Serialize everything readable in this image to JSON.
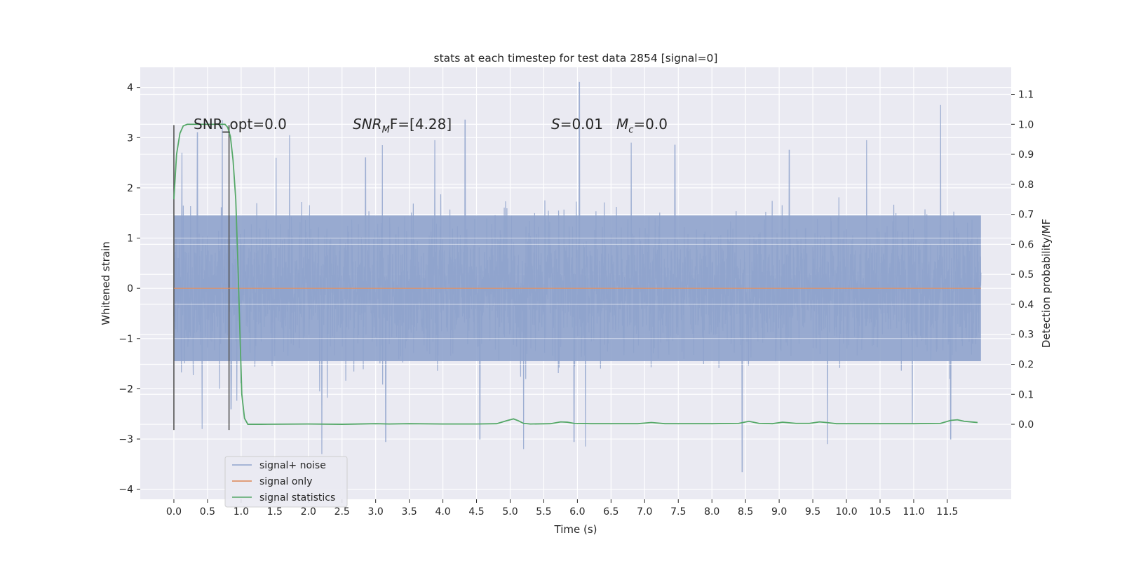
{
  "chart_data": {
    "type": "line",
    "title": "stats at each timestep for test data 2854 [signal=0]",
    "xlabel": "Time (s)",
    "ylabel_left": "Whitened strain",
    "ylabel_right": "Detection probability/MF",
    "xlim": [
      -0.5,
      12.45
    ],
    "ylim_left": [
      -4.2,
      4.4
    ],
    "ylim_right": [
      -0.25,
      1.19
    ],
    "x_ticks": [
      "0.0",
      "0.5",
      "1.0",
      "1.5",
      "2.0",
      "2.5",
      "3.0",
      "3.5",
      "4.0",
      "4.5",
      "5.0",
      "5.5",
      "6.0",
      "6.5",
      "7.0",
      "7.5",
      "8.0",
      "8.5",
      "9.0",
      "9.5",
      "10.0",
      "10.5",
      "11.0",
      "11.5"
    ],
    "y_ticks_left": [
      "4",
      "3",
      "2",
      "1",
      "0",
      "−1",
      "−2",
      "−3",
      "−4"
    ],
    "y_ticks_right": [
      "1.1",
      "1.0",
      "0.9",
      "0.8",
      "0.7",
      "0.6",
      "0.5",
      "0.4",
      "0.3",
      "0.2",
      "0.1",
      "0.0"
    ],
    "grid": true,
    "legend_position": "lower-left",
    "annotations": {
      "snr_opt": "SNR_opt=0.0",
      "snr_mf_main": "SNR",
      "snr_mf_sub": "M",
      "snr_mf_rest": "F=[4.28]",
      "s_label": "S",
      "s_value": "=0.01",
      "mc_label": "M",
      "mc_sub": "c",
      "mc_value": "=0.0"
    },
    "series": [
      {
        "name": "signal+ noise",
        "color": "#8fa3cc",
        "axis": "left",
        "x_range": [
          0.0,
          12.0
        ],
        "typical_envelope": [
          -1.45,
          1.45
        ],
        "peaks": [
          {
            "x": 0.12,
            "y": 2.7
          },
          {
            "x": 0.35,
            "y": 3.1
          },
          {
            "x": 0.72,
            "y": 3.35
          },
          {
            "x": 1.52,
            "y": 2.6
          },
          {
            "x": 1.72,
            "y": 3.05
          },
          {
            "x": 2.85,
            "y": 2.6
          },
          {
            "x": 3.1,
            "y": 2.85
          },
          {
            "x": 3.88,
            "y": 2.95
          },
          {
            "x": 4.33,
            "y": 3.35
          },
          {
            "x": 6.03,
            "y": 4.1
          },
          {
            "x": 6.8,
            "y": 2.9
          },
          {
            "x": 7.45,
            "y": 2.85
          },
          {
            "x": 9.15,
            "y": 2.75
          },
          {
            "x": 10.3,
            "y": 2.95
          },
          {
            "x": 11.4,
            "y": 3.65
          }
        ],
        "troughs": [
          {
            "x": 0.42,
            "y": -2.8
          },
          {
            "x": 0.85,
            "y": -2.4
          },
          {
            "x": 2.2,
            "y": -3.3
          },
          {
            "x": 3.15,
            "y": -3.05
          },
          {
            "x": 4.55,
            "y": -3.0
          },
          {
            "x": 5.2,
            "y": -3.2
          },
          {
            "x": 5.95,
            "y": -3.05
          },
          {
            "x": 6.12,
            "y": -3.15
          },
          {
            "x": 8.45,
            "y": -3.65
          },
          {
            "x": 9.72,
            "y": -3.1
          },
          {
            "x": 11.55,
            "y": -3.0
          }
        ]
      },
      {
        "name": "signal only",
        "color": "#dd8452",
        "axis": "left",
        "x": [
          0.0,
          12.0
        ],
        "y": [
          0.0,
          0.0
        ]
      },
      {
        "name": "signal statistics",
        "color": "#55a868",
        "axis": "right",
        "x": [
          0.0,
          0.04,
          0.09,
          0.14,
          0.2,
          0.3,
          0.45,
          0.6,
          0.7,
          0.76,
          0.8,
          0.84,
          0.88,
          0.92,
          0.95,
          0.98,
          1.01,
          1.05,
          1.1,
          1.2,
          1.3,
          2.0,
          2.5,
          3.0,
          3.2,
          3.5,
          4.0,
          4.5,
          4.8,
          4.95,
          5.05,
          5.12,
          5.2,
          5.3,
          5.6,
          5.75,
          5.85,
          5.95,
          6.2,
          6.6,
          6.9,
          7.1,
          7.3,
          8.0,
          8.4,
          8.55,
          8.7,
          8.9,
          9.05,
          9.25,
          9.45,
          9.6,
          9.7,
          9.85,
          10.2,
          11.0,
          11.4,
          11.55,
          11.65,
          11.75,
          11.9,
          11.95
        ],
        "y": [
          0.75,
          0.9,
          0.97,
          0.995,
          1.0,
          1.0,
          1.0,
          1.0,
          1.0,
          1.0,
          0.99,
          0.96,
          0.88,
          0.75,
          0.55,
          0.32,
          0.1,
          0.02,
          0.0,
          0.0,
          0.0,
          0.001,
          0.0,
          0.002,
          0.001,
          0.002,
          0.001,
          0.001,
          0.002,
          0.012,
          0.018,
          0.012,
          0.003,
          0.001,
          0.002,
          0.008,
          0.007,
          0.003,
          0.002,
          0.002,
          0.002,
          0.006,
          0.002,
          0.002,
          0.003,
          0.01,
          0.003,
          0.002,
          0.007,
          0.003,
          0.003,
          0.008,
          0.006,
          0.002,
          0.002,
          0.002,
          0.003,
          0.013,
          0.015,
          0.01,
          0.007,
          0.006
        ]
      }
    ],
    "vertical_markers": [
      {
        "x": 0.0,
        "y_top": 3.25,
        "y_bottom": -2.82,
        "color": "#555555"
      },
      {
        "x": 0.82,
        "y_top": 3.25,
        "y_bottom": -2.82,
        "color": "#555555"
      }
    ]
  }
}
